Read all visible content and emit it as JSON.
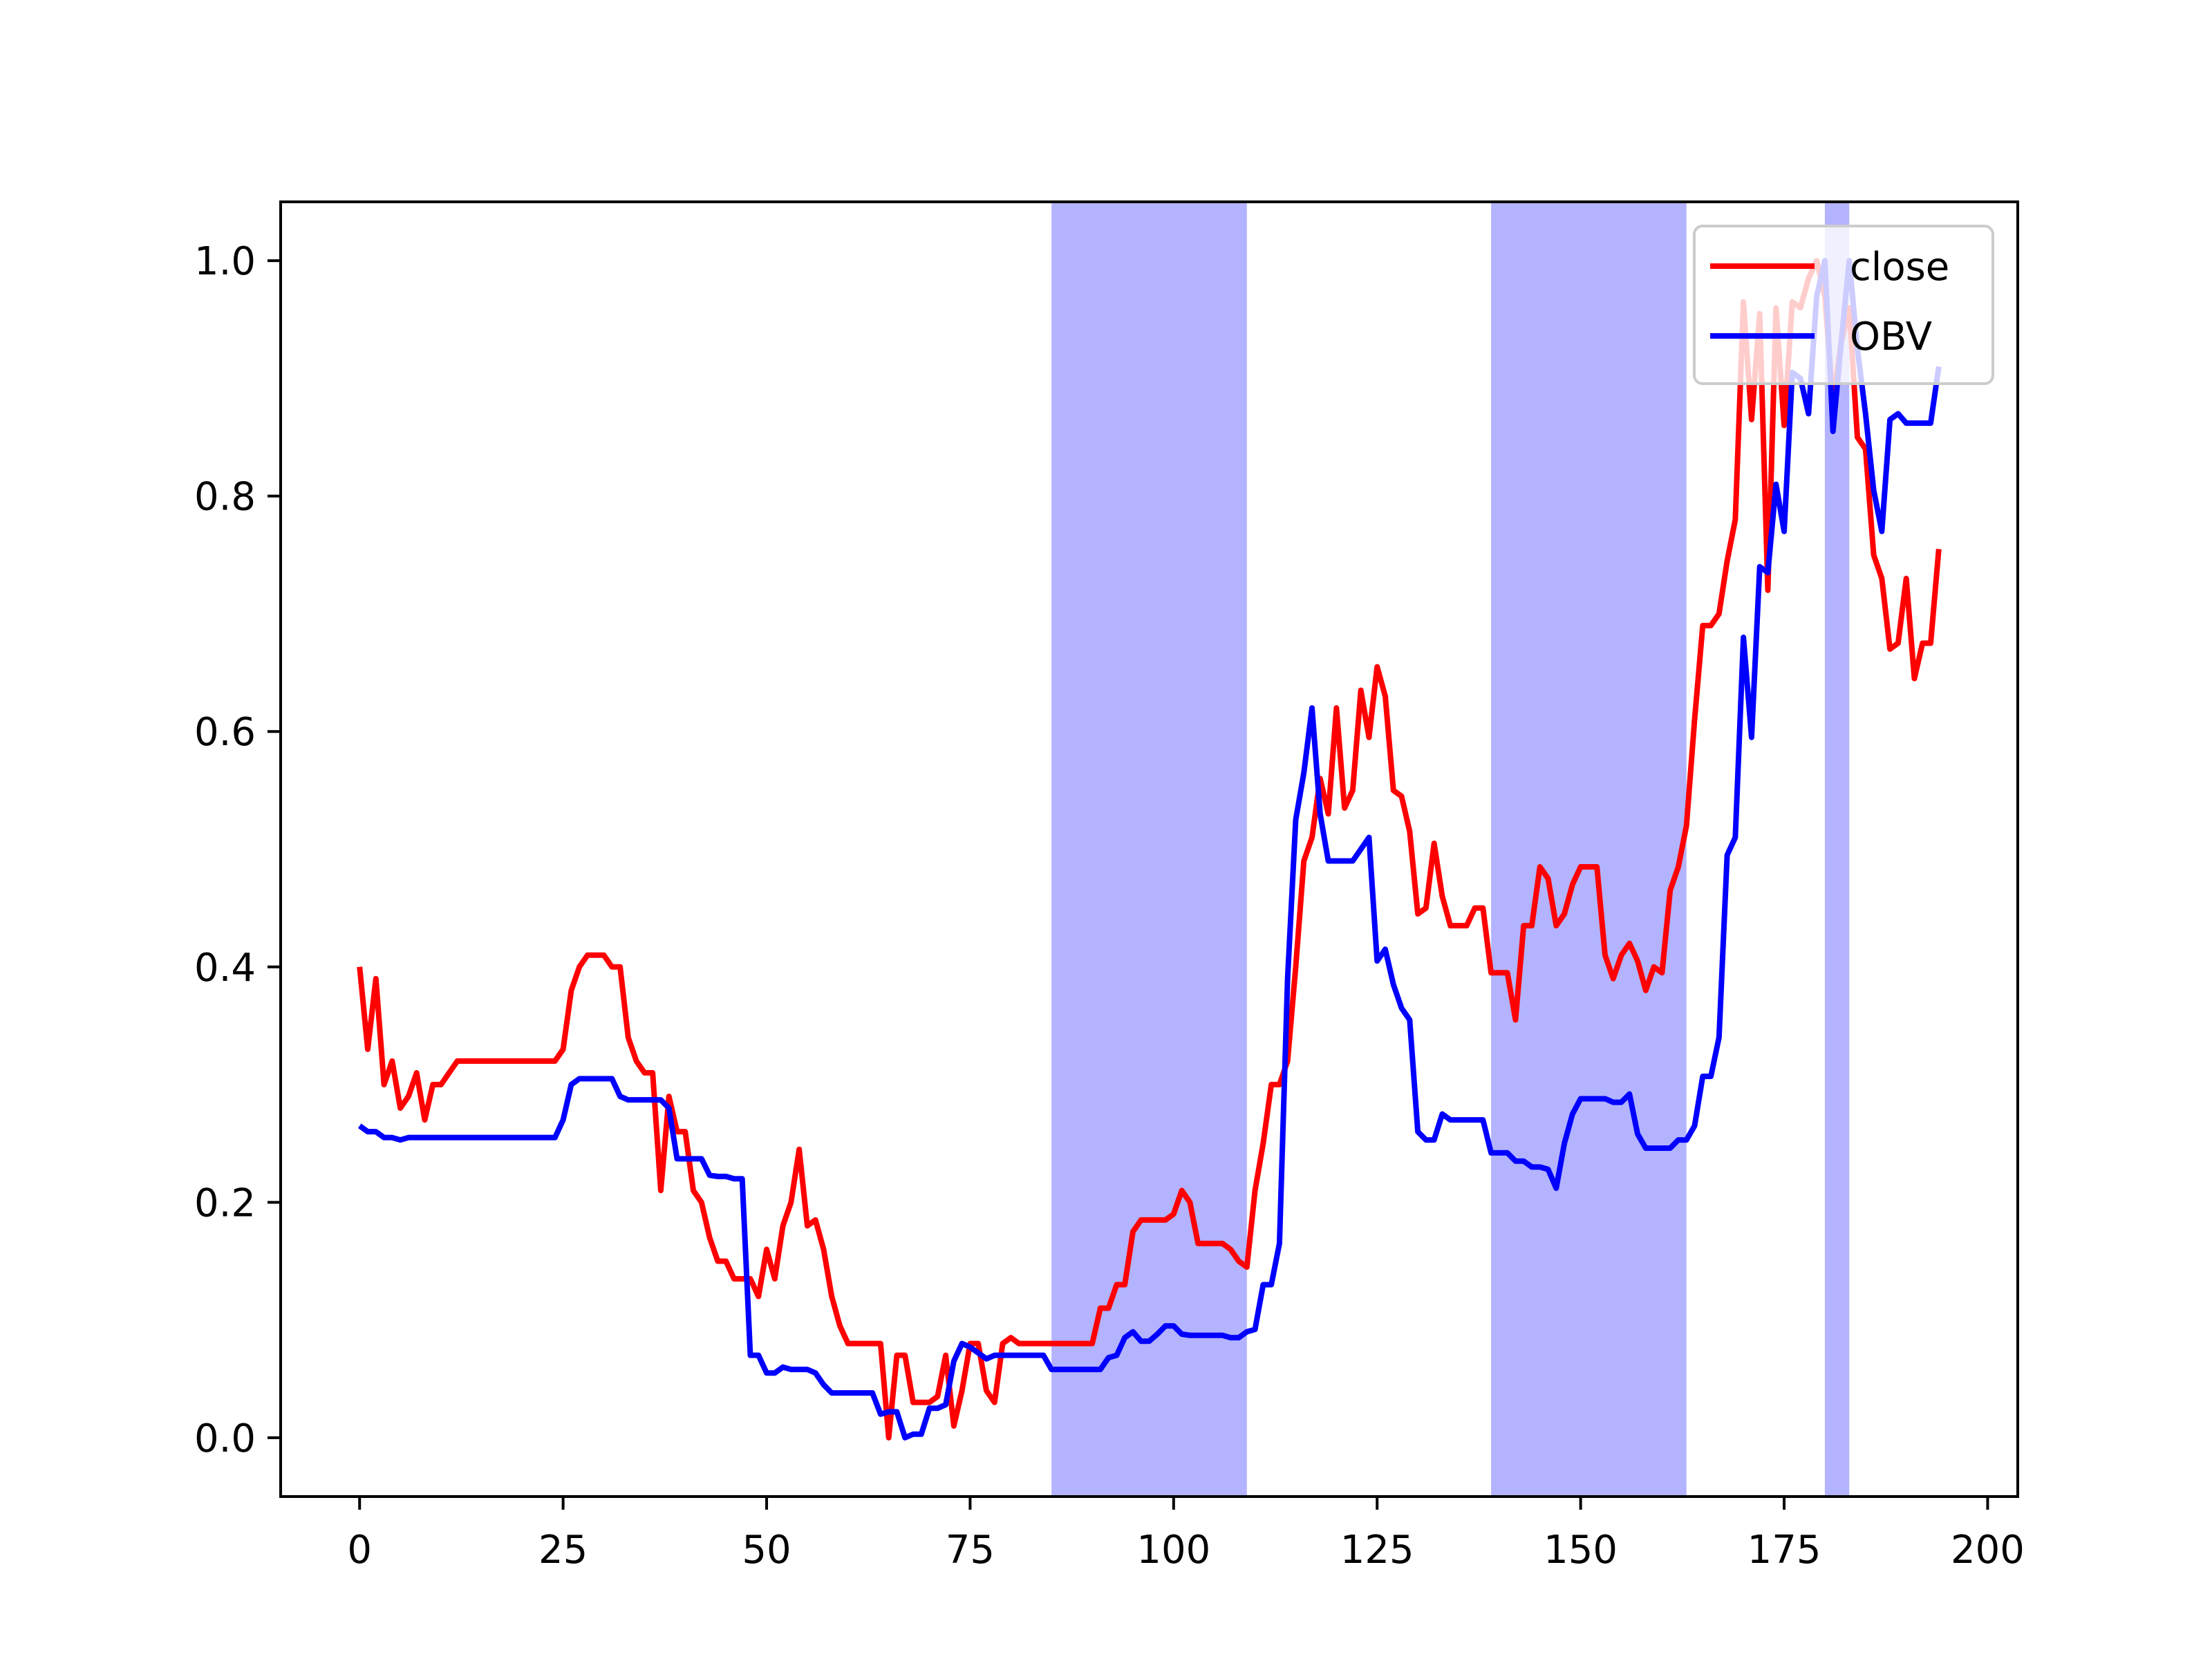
{
  "chart_data": {
    "type": "line",
    "x": [
      0,
      1,
      2,
      3,
      4,
      5,
      6,
      7,
      8,
      9,
      10,
      11,
      12,
      13,
      14,
      15,
      16,
      17,
      18,
      19,
      20,
      21,
      22,
      23,
      24,
      25,
      26,
      27,
      28,
      29,
      30,
      31,
      32,
      33,
      34,
      35,
      36,
      37,
      38,
      39,
      40,
      41,
      42,
      43,
      44,
      45,
      46,
      47,
      48,
      49,
      50,
      51,
      52,
      53,
      54,
      55,
      56,
      57,
      58,
      59,
      60,
      61,
      62,
      63,
      64,
      65,
      66,
      67,
      68,
      69,
      70,
      71,
      72,
      73,
      74,
      75,
      76,
      77,
      78,
      79,
      80,
      81,
      82,
      83,
      84,
      85,
      86,
      87,
      88,
      89,
      90,
      91,
      92,
      93,
      94,
      95,
      96,
      97,
      98,
      99,
      100,
      101,
      102,
      103,
      104,
      105,
      106,
      107,
      108,
      109,
      110,
      111,
      112,
      113,
      114,
      115,
      116,
      117,
      118,
      119,
      120,
      121,
      122,
      123,
      124,
      125,
      126,
      127,
      128,
      129,
      130,
      131,
      132,
      133,
      134,
      135,
      136,
      137,
      138,
      139,
      140,
      141,
      142,
      143,
      144,
      145,
      146,
      147,
      148,
      149,
      150,
      151,
      152,
      153,
      154,
      155,
      156,
      157,
      158,
      159,
      160,
      161,
      162,
      163,
      164,
      165,
      166,
      167,
      168,
      169,
      170,
      171,
      172,
      173,
      174,
      175,
      176,
      177,
      178,
      179,
      180,
      181,
      182,
      183,
      184,
      185,
      186,
      187,
      188,
      189,
      190,
      191,
      192,
      193,
      194
    ],
    "series": [
      {
        "name": "close",
        "color": "#ff0000",
        "values": [
          0.4,
          0.33,
          0.39,
          0.3,
          0.32,
          0.28,
          0.29,
          0.31,
          0.27,
          0.3,
          0.3,
          0.31,
          0.32,
          0.32,
          0.32,
          0.32,
          0.32,
          0.32,
          0.32,
          0.32,
          0.32,
          0.32,
          0.32,
          0.32,
          0.32,
          0.33,
          0.38,
          0.4,
          0.41,
          0.41,
          0.41,
          0.4,
          0.4,
          0.34,
          0.32,
          0.31,
          0.31,
          0.21,
          0.29,
          0.26,
          0.26,
          0.21,
          0.2,
          0.17,
          0.15,
          0.15,
          0.135,
          0.135,
          0.135,
          0.12,
          0.16,
          0.135,
          0.18,
          0.2,
          0.245,
          0.18,
          0.185,
          0.16,
          0.12,
          0.095,
          0.08,
          0.08,
          0.08,
          0.08,
          0.08,
          0.0,
          0.07,
          0.07,
          0.03,
          0.03,
          0.03,
          0.035,
          0.07,
          0.01,
          0.04,
          0.08,
          0.08,
          0.04,
          0.03,
          0.08,
          0.085,
          0.08,
          0.08,
          0.08,
          0.08,
          0.08,
          0.08,
          0.08,
          0.08,
          0.08,
          0.08,
          0.11,
          0.11,
          0.13,
          0.13,
          0.175,
          0.185,
          0.185,
          0.185,
          0.185,
          0.19,
          0.21,
          0.2,
          0.165,
          0.165,
          0.165,
          0.165,
          0.16,
          0.15,
          0.145,
          0.21,
          0.25,
          0.3,
          0.3,
          0.32,
          0.4,
          0.49,
          0.51,
          0.56,
          0.53,
          0.62,
          0.535,
          0.55,
          0.635,
          0.595,
          0.655,
          0.63,
          0.55,
          0.545,
          0.515,
          0.445,
          0.45,
          0.505,
          0.46,
          0.435,
          0.435,
          0.435,
          0.45,
          0.45,
          0.395,
          0.395,
          0.395,
          0.355,
          0.435,
          0.435,
          0.485,
          0.475,
          0.435,
          0.445,
          0.47,
          0.485,
          0.485,
          0.485,
          0.41,
          0.39,
          0.41,
          0.42,
          0.405,
          0.38,
          0.4,
          0.395,
          0.465,
          0.485,
          0.52,
          0.61,
          0.69,
          0.69,
          0.7,
          0.745,
          0.78,
          0.965,
          0.865,
          0.955,
          0.72,
          0.96,
          0.86,
          0.965,
          0.96,
          0.985,
          1.0,
          0.97,
          0.88,
          0.93,
          0.96,
          0.85,
          0.84,
          0.75,
          0.73,
          0.67,
          0.675,
          0.73,
          0.645,
          0.675,
          0.675,
          0.755
        ]
      },
      {
        "name": "OBV",
        "color": "#0000ff",
        "values": [
          0.265,
          0.26,
          0.26,
          0.255,
          0.255,
          0.253,
          0.255,
          0.255,
          0.255,
          0.255,
          0.255,
          0.255,
          0.255,
          0.255,
          0.255,
          0.255,
          0.255,
          0.255,
          0.255,
          0.255,
          0.255,
          0.255,
          0.255,
          0.255,
          0.255,
          0.27,
          0.3,
          0.305,
          0.305,
          0.305,
          0.305,
          0.305,
          0.29,
          0.287,
          0.287,
          0.287,
          0.287,
          0.287,
          0.28,
          0.237,
          0.237,
          0.237,
          0.237,
          0.223,
          0.222,
          0.222,
          0.22,
          0.22,
          0.07,
          0.07,
          0.055,
          0.055,
          0.06,
          0.058,
          0.058,
          0.058,
          0.055,
          0.045,
          0.038,
          0.038,
          0.038,
          0.038,
          0.038,
          0.038,
          0.02,
          0.022,
          0.022,
          0.0,
          0.003,
          0.003,
          0.025,
          0.025,
          0.028,
          0.065,
          0.08,
          0.077,
          0.072,
          0.067,
          0.07,
          0.07,
          0.07,
          0.07,
          0.07,
          0.07,
          0.07,
          0.058,
          0.058,
          0.058,
          0.058,
          0.058,
          0.058,
          0.058,
          0.068,
          0.07,
          0.085,
          0.09,
          0.082,
          0.082,
          0.088,
          0.095,
          0.095,
          0.088,
          0.087,
          0.087,
          0.087,
          0.087,
          0.087,
          0.085,
          0.085,
          0.09,
          0.092,
          0.13,
          0.13,
          0.165,
          0.39,
          0.525,
          0.565,
          0.62,
          0.53,
          0.49,
          0.49,
          0.49,
          0.49,
          0.5,
          0.51,
          0.405,
          0.415,
          0.385,
          0.365,
          0.355,
          0.26,
          0.253,
          0.253,
          0.275,
          0.27,
          0.27,
          0.27,
          0.27,
          0.27,
          0.242,
          0.242,
          0.242,
          0.235,
          0.235,
          0.23,
          0.23,
          0.228,
          0.212,
          0.25,
          0.275,
          0.288,
          0.288,
          0.288,
          0.288,
          0.285,
          0.285,
          0.292,
          0.258,
          0.246,
          0.246,
          0.246,
          0.246,
          0.253,
          0.253,
          0.265,
          0.307,
          0.307,
          0.34,
          0.495,
          0.51,
          0.68,
          0.595,
          0.74,
          0.735,
          0.81,
          0.77,
          0.905,
          0.9,
          0.87,
          0.97,
          1.0,
          0.855,
          0.93,
          1.0,
          0.925,
          0.87,
          0.805,
          0.77,
          0.865,
          0.87,
          0.862,
          0.862,
          0.862,
          0.862,
          0.91
        ]
      }
    ],
    "spans": [
      [
        85,
        109
      ],
      [
        139,
        163
      ],
      [
        180,
        183
      ]
    ],
    "span_color": "#b3b3ff",
    "xlim": [
      -9.7,
      203.7
    ],
    "xticks": [
      0,
      25,
      50,
      75,
      100,
      125,
      150,
      175,
      200
    ],
    "ylim": [
      -0.05,
      1.05
    ],
    "yticks": [
      {
        "value": 0,
        "label": "0.0"
      },
      0.2,
      0.4,
      0.6,
      0.8,
      {
        "value": 1,
        "label": "1.0"
      }
    ],
    "legend": "upper right"
  }
}
